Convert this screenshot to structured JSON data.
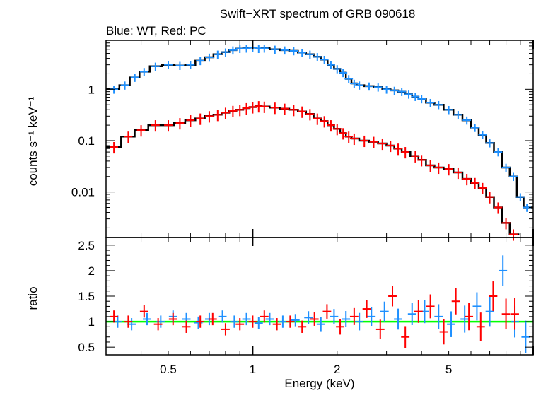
{
  "chart_data": [
    {
      "type": "scatter",
      "title": "Swift−XRT spectrum of GRB 090618",
      "subtitle": "Blue: WT, Red: PC",
      "xlabel": "",
      "ylabel": "counts s⁻¹ keV⁻¹",
      "xscale": "log",
      "yscale": "log",
      "xlim": [
        0.3,
        10
      ],
      "ylim": [
        0.0013,
        9
      ],
      "y_ticks": [
        0.01,
        0.1,
        1
      ],
      "y_tick_labels": [
        "0.01",
        "0.1",
        "1"
      ],
      "colors": {
        "wt": "#1e90ff",
        "pc": "#ff0000",
        "model": "#000000"
      },
      "series": [
        {
          "name": "WT",
          "color": "#1e90ff",
          "x": [
            0.32,
            0.35,
            0.38,
            0.41,
            0.45,
            0.5,
            0.55,
            0.6,
            0.65,
            0.7,
            0.75,
            0.8,
            0.85,
            0.9,
            0.95,
            1.0,
            1.05,
            1.1,
            1.2,
            1.3,
            1.4,
            1.5,
            1.6,
            1.7,
            1.8,
            1.9,
            2.0,
            2.1,
            2.2,
            2.3,
            2.4,
            2.6,
            2.8,
            3.0,
            3.2,
            3.4,
            3.6,
            3.8,
            4.0,
            4.3,
            4.6,
            5.0,
            5.4,
            5.8,
            6.2,
            6.6,
            7.0,
            7.5,
            8.0,
            8.5,
            9.0,
            9.5
          ],
          "y": [
            1.0,
            1.2,
            1.7,
            2.2,
            2.8,
            3.0,
            2.9,
            3.0,
            3.6,
            4.2,
            4.8,
            5.3,
            5.8,
            6.2,
            6.3,
            6.5,
            6.2,
            6.3,
            6.0,
            5.8,
            5.6,
            5.2,
            4.8,
            4.3,
            3.8,
            3.0,
            2.5,
            2.1,
            1.6,
            1.3,
            1.2,
            1.15,
            1.1,
            1.0,
            0.95,
            0.9,
            0.8,
            0.72,
            0.65,
            0.55,
            0.5,
            0.4,
            0.32,
            0.25,
            0.18,
            0.13,
            0.09,
            0.06,
            0.03,
            0.02,
            0.008,
            0.005
          ]
        },
        {
          "name": "PC",
          "color": "#ff0000",
          "x": [
            0.32,
            0.36,
            0.4,
            0.45,
            0.5,
            0.55,
            0.6,
            0.65,
            0.7,
            0.75,
            0.8,
            0.85,
            0.9,
            0.95,
            1.0,
            1.05,
            1.1,
            1.2,
            1.3,
            1.4,
            1.5,
            1.6,
            1.7,
            1.8,
            1.9,
            2.0,
            2.1,
            2.2,
            2.3,
            2.5,
            2.7,
            2.9,
            3.1,
            3.3,
            3.5,
            3.8,
            4.0,
            4.3,
            4.6,
            5.0,
            5.4,
            5.8,
            6.2,
            6.6,
            7.0,
            7.5,
            8.0,
            8.5
          ],
          "y": [
            0.075,
            0.12,
            0.16,
            0.2,
            0.2,
            0.22,
            0.25,
            0.27,
            0.3,
            0.32,
            0.35,
            0.38,
            0.4,
            0.43,
            0.45,
            0.47,
            0.46,
            0.44,
            0.42,
            0.4,
            0.37,
            0.33,
            0.27,
            0.24,
            0.2,
            0.17,
            0.14,
            0.12,
            0.11,
            0.1,
            0.095,
            0.088,
            0.08,
            0.07,
            0.06,
            0.05,
            0.042,
            0.033,
            0.03,
            0.028,
            0.024,
            0.018,
            0.015,
            0.012,
            0.008,
            0.005,
            0.0025,
            0.0015
          ]
        }
      ]
    },
    {
      "type": "scatter",
      "xlabel": "Energy (keV)",
      "ylabel": "ratio",
      "xscale": "log",
      "xlim": [
        0.3,
        10
      ],
      "ylim": [
        0.35,
        2.65
      ],
      "x_ticks": [
        0.5,
        1,
        2,
        5
      ],
      "x_tick_labels": [
        "0.5",
        "1",
        "2",
        "5"
      ],
      "y_ticks": [
        0.5,
        1,
        1.5,
        2,
        2.5
      ],
      "y_tick_labels": [
        "0.5",
        "1",
        "1.5",
        "2",
        "2.5"
      ],
      "reference_line": {
        "y": 1,
        "color": "#00ff00"
      },
      "series": [
        {
          "name": "WT",
          "color": "#1e90ff",
          "x": [
            0.33,
            0.37,
            0.42,
            0.47,
            0.52,
            0.58,
            0.64,
            0.7,
            0.78,
            0.86,
            0.95,
            1.05,
            1.15,
            1.28,
            1.42,
            1.58,
            1.75,
            1.95,
            2.15,
            2.4,
            2.65,
            2.95,
            3.3,
            3.7,
            4.1,
            4.6,
            5.1,
            5.7,
            6.3,
            7.0,
            7.8,
            8.6,
            9.4
          ],
          "y": [
            1.0,
            0.95,
            1.05,
            1.0,
            1.1,
            1.05,
            0.98,
            1.05,
            1.1,
            1.0,
            1.05,
            0.97,
            1.05,
            1.0,
            1.03,
            1.08,
            0.95,
            1.1,
            1.05,
            1.0,
            1.1,
            1.2,
            1.05,
            1.15,
            1.2,
            1.1,
            0.95,
            1.05,
            1.3,
            1.2,
            2.0,
            1.0,
            0.7
          ]
        },
        {
          "name": "PC",
          "color": "#ff0000",
          "x": [
            0.32,
            0.36,
            0.41,
            0.46,
            0.52,
            0.58,
            0.65,
            0.72,
            0.8,
            0.9,
            1.0,
            1.1,
            1.22,
            1.36,
            1.5,
            1.66,
            1.84,
            2.05,
            2.3,
            2.55,
            2.85,
            3.15,
            3.5,
            3.9,
            4.3,
            4.8,
            5.3,
            5.9,
            6.5,
            7.2,
            8.0,
            8.6
          ],
          "y": [
            1.1,
            1.0,
            1.2,
            0.95,
            1.05,
            0.9,
            1.0,
            1.05,
            0.85,
            0.95,
            1.0,
            1.1,
            0.95,
            1.0,
            0.9,
            1.05,
            1.2,
            0.9,
            1.1,
            1.25,
            0.85,
            1.5,
            0.7,
            1.2,
            1.3,
            0.8,
            1.4,
            1.1,
            0.9,
            1.5,
            1.15,
            1.15
          ]
        }
      ]
    }
  ]
}
